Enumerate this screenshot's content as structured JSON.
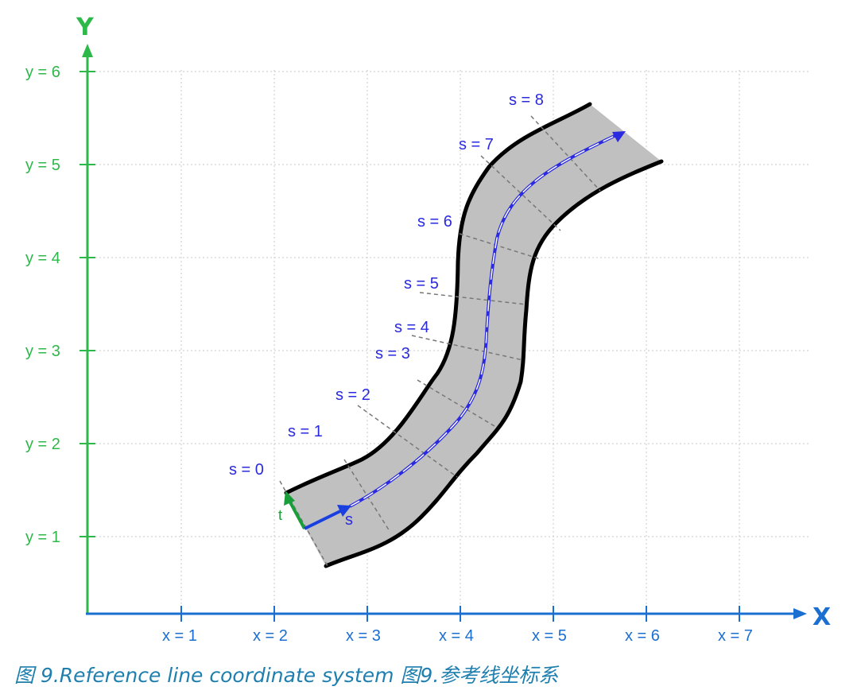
{
  "diagram": {
    "axis_titles": {
      "x": "X",
      "y": "Y"
    },
    "y_ticks": [
      "y = 1",
      "y = 2",
      "y = 3",
      "y = 4",
      "y = 5",
      "y = 6"
    ],
    "x_ticks": [
      "x = 1",
      "x = 2",
      "x = 3",
      "x = 4",
      "x = 5",
      "x = 6",
      "x = 7"
    ],
    "s_labels": [
      "s = 0",
      "s = 1",
      "s = 2",
      "s = 3",
      "s = 4",
      "s = 5",
      "s = 6",
      "s = 7",
      "s = 8"
    ],
    "vector_labels": {
      "s": "s",
      "t": "t"
    },
    "colors": {
      "y_axis": "#2db84a",
      "x_axis": "#1a6fd0",
      "s_labels": "#2a2ae0",
      "road_fill": "#c0c0c0",
      "road_border": "#000000",
      "reference_line": "#2a2ae0",
      "t_vector": "#1a9e3a",
      "s_vector": "#1a3fe0",
      "caption": "#1e7fae"
    }
  },
  "caption": "图 9.Reference line coordinate system 图9.参考线坐标系"
}
